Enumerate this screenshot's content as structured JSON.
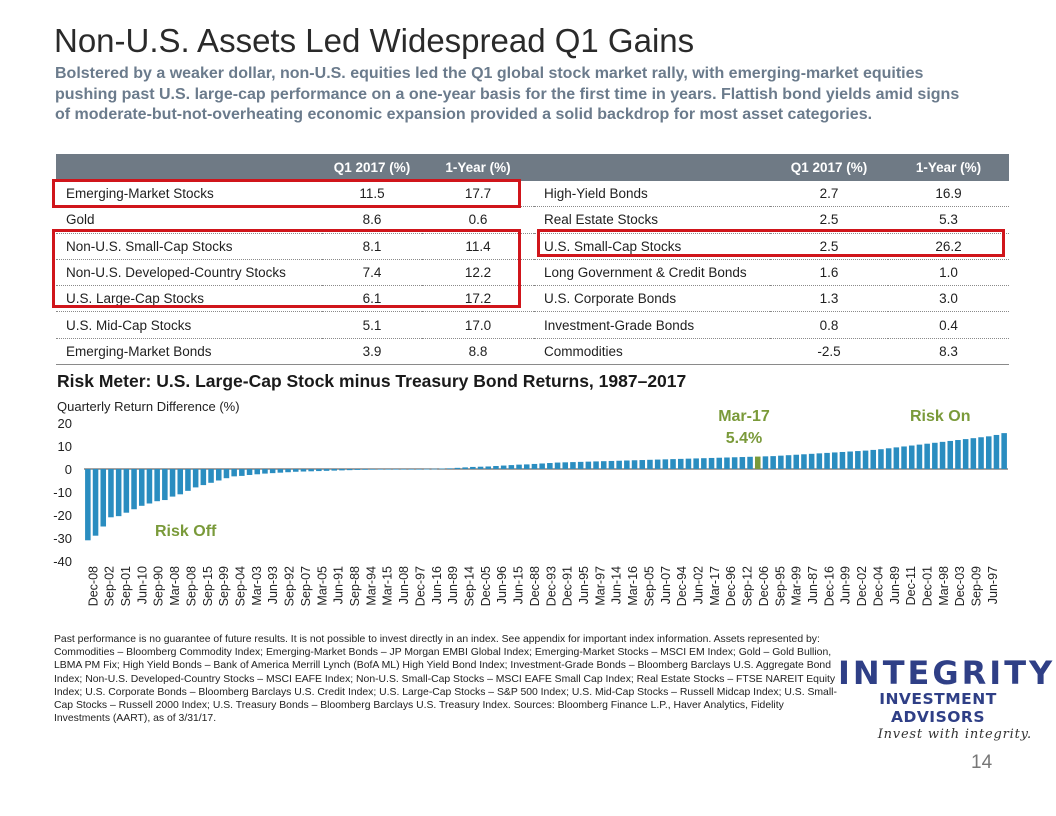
{
  "header": {
    "title": "Non-U.S. Assets Led Widespread Q1 Gains",
    "subtitle": "Bolstered by a weaker dollar, non-U.S. equities led the Q1 global stock market rally, with emerging-market equities pushing past U.S. large-cap performance on a one-year basis for the first time in years. Flattish bond yields amid signs of moderate-but-not-overheating economic expansion provided a solid backdrop for most asset categories."
  },
  "table": {
    "headers": [
      "",
      "Q1 2017 (%)",
      "1-Year (%)",
      "",
      "Q1 2017 (%)",
      "1-Year (%)"
    ],
    "rows": [
      [
        "Emerging-Market Stocks",
        "11.5",
        "17.7",
        "High-Yield Bonds",
        "2.7",
        "16.9"
      ],
      [
        "Gold",
        "8.6",
        "0.6",
        "Real Estate Stocks",
        "2.5",
        "5.3"
      ],
      [
        "Non-U.S. Small-Cap Stocks",
        "8.1",
        "11.4",
        "U.S. Small-Cap Stocks",
        "2.5",
        "26.2"
      ],
      [
        "Non-U.S. Developed-Country Stocks",
        "7.4",
        "12.2",
        "Long Government & Credit Bonds",
        "1.6",
        "1.0"
      ],
      [
        "U.S. Large-Cap Stocks",
        "6.1",
        "17.2",
        "U.S. Corporate Bonds",
        "1.3",
        "3.0"
      ],
      [
        "U.S. Mid-Cap Stocks",
        "5.1",
        "17.0",
        "Investment-Grade Bonds",
        "0.8",
        "0.4"
      ],
      [
        "Emerging-Market Bonds",
        "3.9",
        "8.8",
        "Commodities",
        "-2.5",
        "8.3"
      ]
    ]
  },
  "chart_data": {
    "type": "bar",
    "title": "Risk Meter: U.S. Large-Cap Stock minus Treasury Bond Returns, 1987–2017",
    "ylabel": "Quarterly Return Difference (%)",
    "xlabel": "",
    "ylim": [
      -40,
      20
    ],
    "yticks": [
      20,
      10,
      0,
      -10,
      -20,
      -30,
      -40
    ],
    "sorted": "ascending",
    "x_tick_labels": [
      "Dec-08",
      "Sep-02",
      "Sep-01",
      "Jun-10",
      "Sep-90",
      "Mar-08",
      "Sep-08",
      "Sep-15",
      "Sep-99",
      "Sep-04",
      "Mar-03",
      "Jun-93",
      "Sep-92",
      "Sep-07",
      "Mar-05",
      "Jun-91",
      "Sep-88",
      "Mar-94",
      "Mar-15",
      "Jun-08",
      "Dec-97",
      "Jun-16",
      "Jun-89",
      "Sep-14",
      "Dec-05",
      "Jun-96",
      "Jun-15",
      "Dec-88",
      "Dec-93",
      "Dec-91",
      "Jun-95",
      "Mar-97",
      "Jun-14",
      "Mar-16",
      "Sep-05",
      "Jun-07",
      "Dec-94",
      "Jun-02",
      "Mar-17",
      "Dec-96",
      "Sep-12",
      "Dec-06",
      "Sep-95",
      "Mar-99",
      "Jun-87",
      "Dec-16",
      "Jun-99",
      "Dec-02",
      "Dec-04",
      "Jun-89",
      "Dec-11",
      "Dec-01",
      "Mar-98",
      "Dec-03",
      "Sep-09",
      "Jun-97"
    ],
    "values": [
      -31,
      -29,
      -25,
      -21,
      -20.5,
      -19,
      -17.5,
      -16,
      -15,
      -14,
      -13.5,
      -12,
      -11,
      -9.5,
      -8,
      -7,
      -6,
      -5,
      -4,
      -3.2,
      -3,
      -2.6,
      -2.3,
      -2,
      -1.8,
      -1.6,
      -1.4,
      -1.2,
      -1.1,
      -1,
      -0.9,
      -0.8,
      -0.7,
      -0.6,
      -0.5,
      -0.4,
      -0.35,
      -0.3,
      -0.25,
      -0.2,
      -0.15,
      -0.1,
      -0.05,
      0,
      0.05,
      0.1,
      0.2,
      0.3,
      0.5,
      0.7,
      0.9,
      1.0,
      1.1,
      1.3,
      1.5,
      1.7,
      1.9,
      2.0,
      2.2,
      2.4,
      2.6,
      2.8,
      2.9,
      3.0,
      3.1,
      3.2,
      3.3,
      3.4,
      3.5,
      3.6,
      3.7,
      3.8,
      3.9,
      4.0,
      4.1,
      4.2,
      4.3,
      4.4,
      4.5,
      4.6,
      4.7,
      4.8,
      4.9,
      5.0,
      5.1,
      5.2,
      5.3,
      5.4,
      5.5,
      5.6,
      5.8,
      6.0,
      6.2,
      6.4,
      6.6,
      6.8,
      7.0,
      7.2,
      7.4,
      7.6,
      7.8,
      8.0,
      8.3,
      8.6,
      9.0,
      9.4,
      9.8,
      10.2,
      10.6,
      11.0,
      11.4,
      11.8,
      12.2,
      12.6,
      13.0,
      13.4,
      13.8,
      14.2,
      14.8,
      15.6
    ],
    "highlight_index": 87,
    "annotations": {
      "highlight_label": "Mar-17",
      "highlight_value": "5.4%",
      "left": "Risk Off",
      "right": "Risk On"
    },
    "colors": {
      "bars": "#2a8dc0",
      "highlight": "#7a9a3a",
      "annotation": "#7a9a3a"
    }
  },
  "footnote": "Past performance is no guarantee of future results. It is not possible to invest directly in an index. See appendix for important index information. Assets represented by: Commodities – Bloomberg Commodity Index; Emerging-Market Bonds – JP Morgan EMBI Global Index; Emerging-Market Stocks – MSCI EM Index; Gold – Gold Bullion, LBMA PM Fix; High Yield Bonds – Bank of America Merrill Lynch (BofA ML) High Yield Bond Index; Investment-Grade Bonds – Bloomberg Barclays U.S. Aggregate Bond Index; Non-U.S. Developed-Country Stocks – MSCI EAFE Index; Non-U.S. Small-Cap Stocks – MSCI EAFE Small Cap Index; Real Estate Stocks – FTSE NAREIT Equity Index; U.S. Corporate Bonds – Bloomberg Barclays U.S. Credit Index; U.S. Large-Cap Stocks – S&P 500 Index; U.S. Mid-Cap Stocks – Russell Midcap Index; U.S. Small-Cap Stocks – Russell 2000 Index; U.S. Treasury Bonds – Bloomberg Barclays U.S. Treasury Index. Sources: Bloomberg Finance L.P., Haver Analytics, Fidelity Investments (AART), as of 3/31/17.",
  "logo": {
    "line1": "INTEGRITY",
    "line2": "INVESTMENT ADVISORS",
    "tagline": "Invest with integrity."
  },
  "page_number": "14",
  "highlight_color": "#d0151b"
}
